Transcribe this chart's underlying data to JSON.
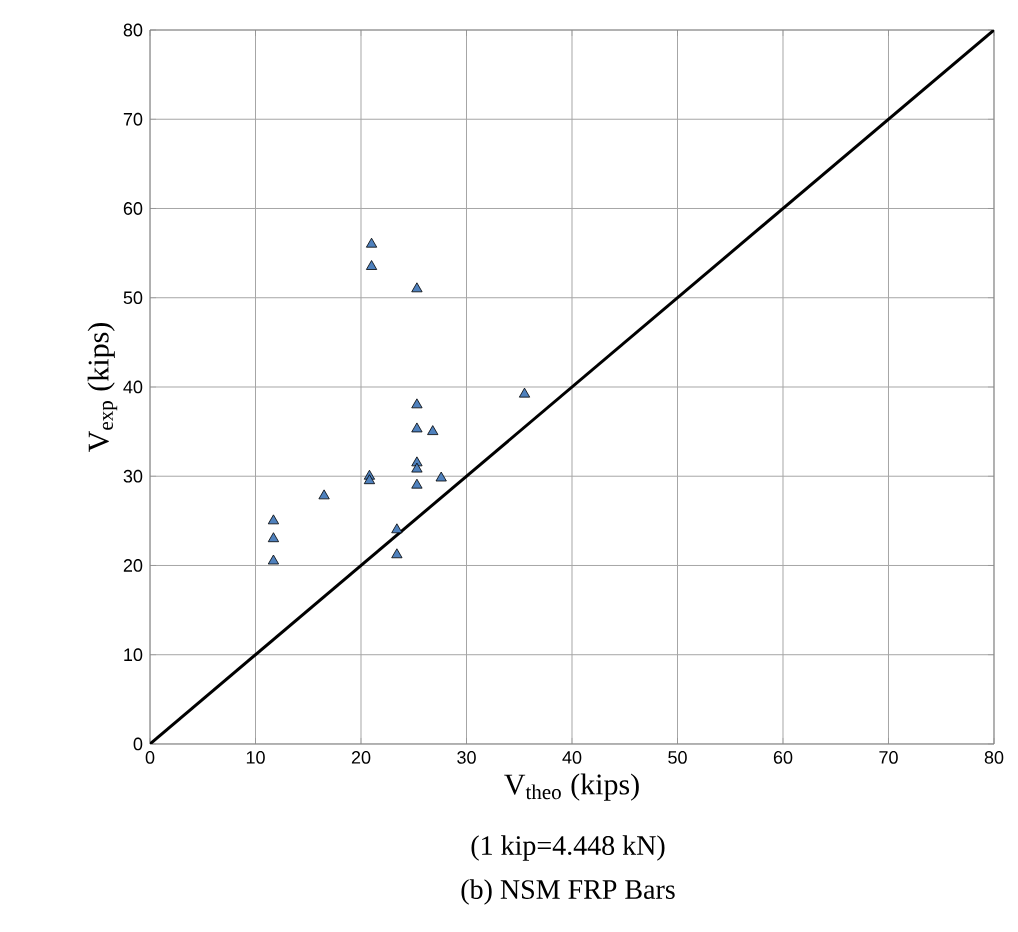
{
  "chart_data": {
    "type": "scatter",
    "xlabel": "V$_{theo}$ (kips)",
    "ylabel": "V$_{exp}$ (kips)",
    "annotations": [
      "(1 kip=4.448 kN)",
      "(b)      NSM FRP Bars"
    ],
    "series": [
      {
        "color": "#4f81bd",
        "marker": "triangle",
        "x": [
          11.7,
          11.7,
          11.7,
          16.5,
          20.8,
          20.8,
          21,
          21,
          25.3,
          23.4,
          23.4,
          25.3,
          25.3,
          26.8,
          25.3,
          25.3,
          25.3,
          27.6,
          35.5
        ],
        "values": [
          25,
          23,
          20.5,
          27.8,
          30,
          29.5,
          56,
          53.5,
          51,
          24,
          21.2,
          38,
          35.3,
          35,
          31.5,
          30.8,
          29,
          29.8,
          39.2
        ]
      },
      {
        "type": "line",
        "color": "#000000",
        "marker": "none",
        "x": [
          0,
          80
        ],
        "values": [
          0,
          80
        ]
      }
    ],
    "xlim": [
      0,
      80
    ],
    "ylim": [
      0,
      80
    ],
    "xticks": [
      0,
      10,
      20,
      30,
      40,
      50,
      60,
      70,
      80
    ],
    "yticks": [
      0,
      10,
      20,
      30,
      40,
      50,
      60,
      70,
      80
    ],
    "grid": true
  }
}
